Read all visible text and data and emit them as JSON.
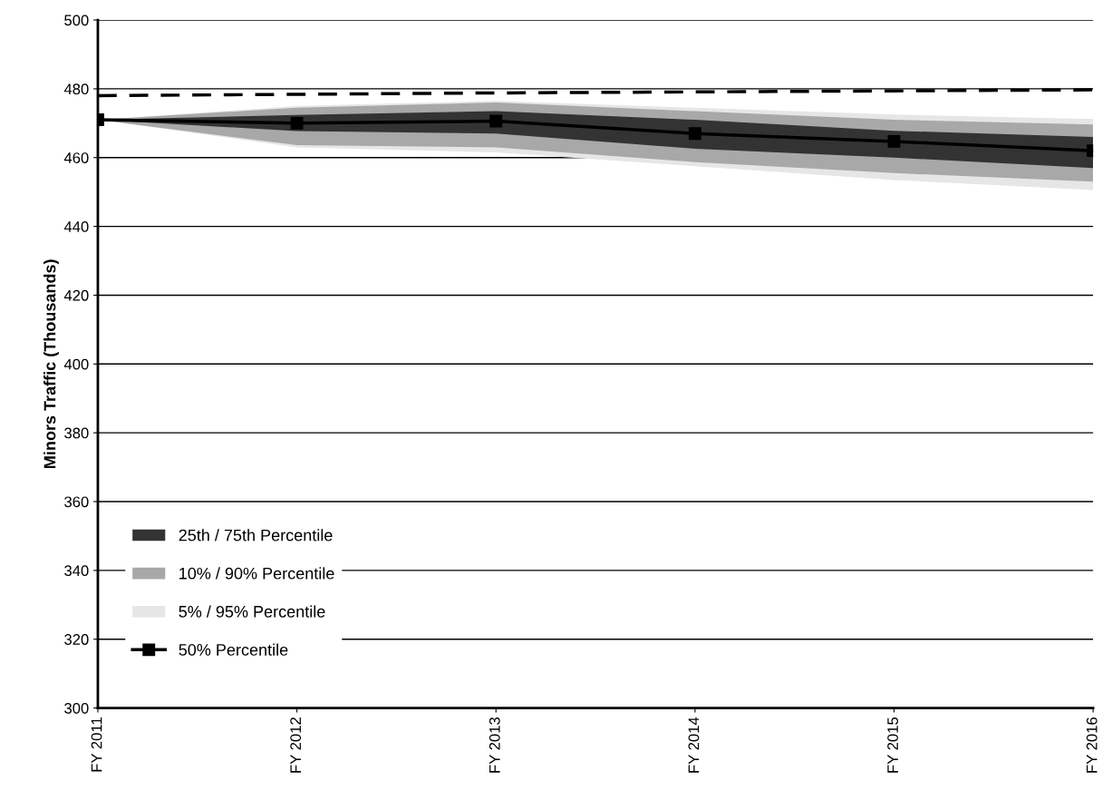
{
  "chart_data": {
    "type": "line",
    "ylabel": "Minors Traffic (Thousands)",
    "categories": [
      "FY 2011",
      "FY 2012",
      "FY 2013",
      "FY 2014",
      "FY 2015",
      "FY 2016"
    ],
    "ylim": [
      300,
      500
    ],
    "yticks": [
      300,
      320,
      340,
      360,
      380,
      400,
      420,
      440,
      460,
      480,
      500
    ],
    "grid": "y",
    "legend": "bottom left",
    "series": [
      {
        "name": "5% / 95% Percentile",
        "color": "#e6e6e6",
        "marker": "none",
        "values": [
          null,
          null,
          null,
          null,
          null,
          null
        ],
        "lower": [
          471,
          463,
          461.5,
          457.5,
          453.5,
          450.6
        ],
        "upper": [
          471,
          475,
          476.5,
          474.5,
          472.5,
          471.2
        ]
      },
      {
        "name": "10% / 90% Percentile",
        "color": "#a8a8a8",
        "marker": "none",
        "values": [
          null,
          null,
          null,
          null,
          null,
          null
        ],
        "lower": [
          471,
          463.6,
          463,
          458.7,
          455.5,
          453
        ],
        "upper": [
          471,
          474.5,
          476,
          473.5,
          471,
          469.6
        ]
      },
      {
        "name": "25th / 75th Percentile",
        "color": "#333333",
        "marker": "none",
        "values": [
          null,
          null,
          null,
          null,
          null,
          null
        ],
        "lower": [
          471,
          467.7,
          467,
          462.6,
          460,
          457
        ],
        "upper": [
          471,
          472.4,
          473.5,
          471,
          467.8,
          466
        ]
      },
      {
        "name": "50% Percentile",
        "color": "#000000",
        "marker": "square",
        "line_style": "solid",
        "values": [
          471,
          470,
          470.6,
          467,
          464.7,
          462
        ]
      },
      {
        "color": "#000000",
        "marker": "none",
        "line_style": "dashed",
        "values": [
          478,
          478.4,
          478.8,
          479.1,
          479.4,
          479.7
        ]
      }
    ]
  }
}
